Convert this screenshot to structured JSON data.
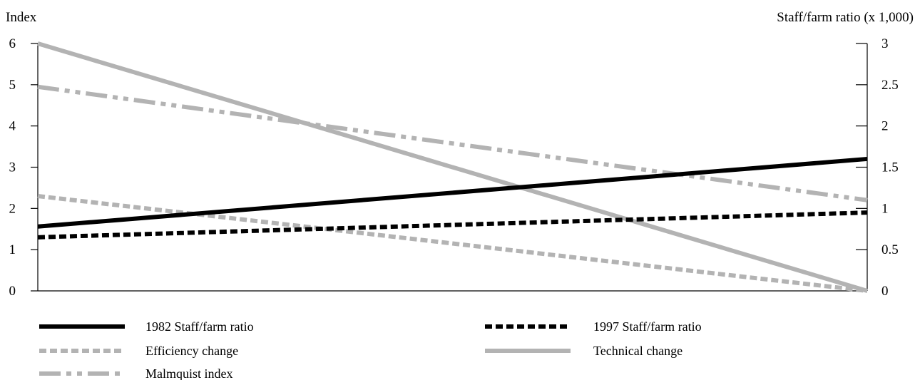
{
  "chart_data": {
    "type": "line",
    "ylabel_left": "Index",
    "ylabel_right": "Staff/farm ratio (x 1,000)",
    "ylim_left": [
      0,
      6
    ],
    "ylim_right": [
      0,
      3
    ],
    "yticks_left": [
      "0",
      "1",
      "2",
      "3",
      "4",
      "5",
      "6"
    ],
    "yticks_right": [
      "0",
      "0.5",
      "1",
      "1.5",
      "2",
      "2.5",
      "3"
    ],
    "x": [
      0,
      1
    ],
    "grid": false,
    "legend_position": "bottom",
    "series": [
      {
        "name": "1982 Staff/farm ratio",
        "axis": "right",
        "values": [
          0.78,
          1.6
        ],
        "color": "#000000",
        "style": "solid"
      },
      {
        "name": "1997 Staff/farm ratio",
        "axis": "right",
        "values": [
          0.65,
          0.95
        ],
        "color": "#000000",
        "style": "dotted"
      },
      {
        "name": "Efficiency change",
        "axis": "left",
        "values": [
          2.3,
          0.0
        ],
        "color": "#b3b3b3",
        "style": "dotted"
      },
      {
        "name": "Technical change",
        "axis": "left",
        "values": [
          6.0,
          0.0
        ],
        "color": "#b3b3b3",
        "style": "solid"
      },
      {
        "name": "Malmquist index",
        "axis": "left",
        "values": [
          4.95,
          2.2
        ],
        "color": "#b3b3b3",
        "style": "dashdot"
      }
    ]
  }
}
